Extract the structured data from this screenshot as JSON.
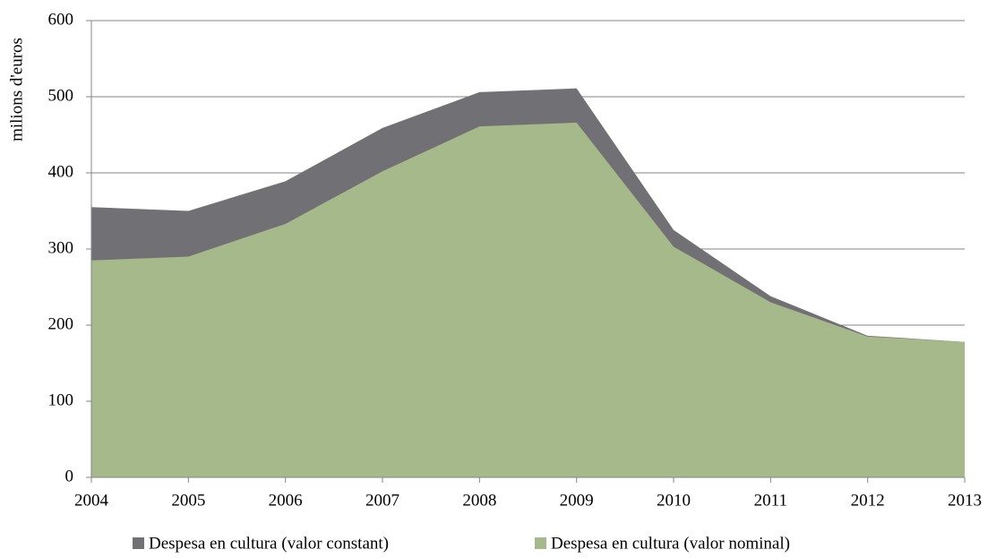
{
  "chart_data": {
    "type": "area",
    "y_label": "milions d'euros",
    "x": [
      2004,
      2005,
      2006,
      2007,
      2008,
      2009,
      2010,
      2011,
      2012,
      2013
    ],
    "series": [
      {
        "name": "Despesa en cultura (valor constant)",
        "color": "#717074",
        "values": [
          355,
          350,
          389,
          459,
          506,
          511,
          325,
          238,
          186,
          178
        ]
      },
      {
        "name": "Despesa en cultura (valor nominal)",
        "color": "#a6b98a",
        "values": [
          285,
          290,
          333,
          402,
          461,
          466,
          303,
          230,
          185,
          178
        ]
      }
    ],
    "xlim": [
      2004,
      2013
    ],
    "xticks": [
      2004,
      2005,
      2006,
      2007,
      2008,
      2009,
      2010,
      2011,
      2012,
      2013
    ],
    "ylim": [
      0,
      600
    ],
    "yticks": [
      0,
      100,
      200,
      300,
      400,
      500,
      600
    ],
    "grid": true,
    "legend": "bottom"
  }
}
